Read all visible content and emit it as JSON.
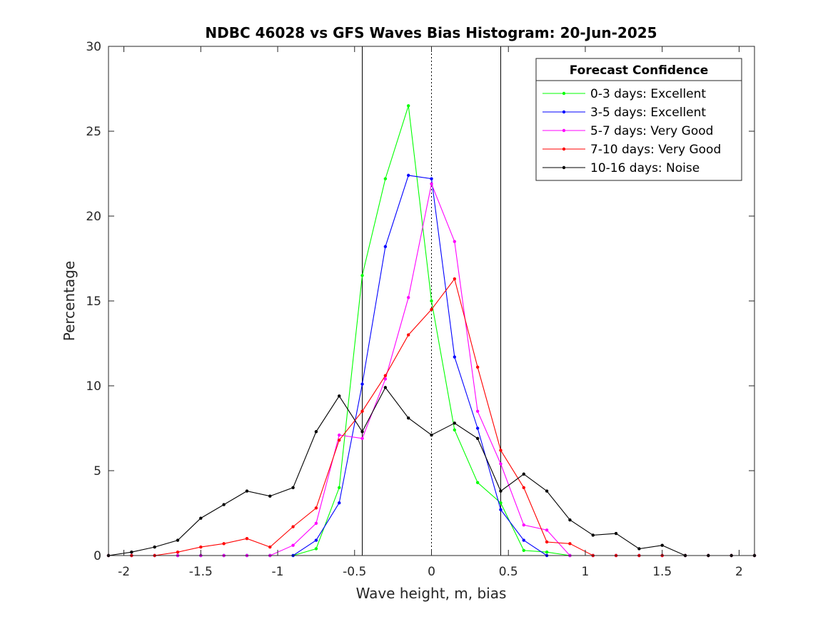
{
  "chart_data": {
    "type": "line",
    "title": "NDBC 46028 vs GFS Waves Bias Histogram: 20-Jun-2025",
    "xlabel": "Wave height, m, bias",
    "ylabel": "Percentage",
    "xlim": [
      -2.1,
      2.1
    ],
    "ylim": [
      0,
      30
    ],
    "xticks": [
      -2,
      -1.5,
      -1,
      -0.5,
      0,
      0.5,
      1,
      1.5,
      2
    ],
    "xtick_labels": [
      "-2",
      "-1.5",
      "-1",
      "-0.5",
      "0",
      "0.5",
      "1",
      "1.5",
      "2"
    ],
    "yticks": [
      0,
      5,
      10,
      15,
      20,
      25,
      30
    ],
    "ytick_labels": [
      "0",
      "5",
      "10",
      "15",
      "20",
      "25",
      "30"
    ],
    "grid": false,
    "reference_lines": [
      {
        "x": -0.45,
        "style": "solid"
      },
      {
        "x": 0,
        "style": "dotted"
      },
      {
        "x": 0.45,
        "style": "solid"
      }
    ],
    "x": [
      -2.1,
      -1.95,
      -1.8,
      -1.65,
      -1.5,
      -1.35,
      -1.2,
      -1.05,
      -0.9,
      -0.75,
      -0.6,
      -0.45,
      -0.3,
      -0.15,
      0,
      0.15,
      0.3,
      0.45,
      0.6,
      0.75,
      0.9,
      1.05,
      1.2,
      1.35,
      1.5,
      1.65,
      1.8,
      1.95,
      2.1
    ],
    "series": [
      {
        "name": "0-3 days: Excellent",
        "color": "#00ff00",
        "values": [
          0,
          0,
          0,
          0,
          0,
          0,
          0,
          0,
          0,
          0.4,
          4.0,
          16.5,
          22.2,
          26.5,
          15.0,
          7.4,
          4.3,
          3.1,
          0.3,
          0.2,
          0,
          0,
          0,
          0,
          0,
          0,
          0,
          0,
          0
        ]
      },
      {
        "name": "3-5 days: Excellent",
        "color": "#0000ff",
        "values": [
          0,
          0,
          0,
          0,
          0,
          0,
          0,
          0,
          0,
          0.9,
          3.1,
          10.1,
          18.2,
          22.4,
          22.2,
          11.7,
          7.5,
          2.7,
          0.9,
          0,
          0,
          0,
          0,
          0,
          0,
          0,
          0,
          0,
          0
        ]
      },
      {
        "name": "5-7 days: Very Good",
        "color": "#ff00ff",
        "values": [
          0,
          0,
          0,
          0,
          0,
          0,
          0,
          0,
          0.6,
          1.9,
          7.1,
          6.9,
          10.4,
          15.2,
          21.9,
          18.5,
          8.5,
          5.4,
          1.8,
          1.5,
          0,
          0,
          0,
          0,
          0,
          0,
          0,
          0,
          0
        ]
      },
      {
        "name": "7-10 days: Very Good",
        "color": "#ff0000",
        "values": [
          0,
          0,
          0,
          0.2,
          0.5,
          0.7,
          1.0,
          0.5,
          1.7,
          2.8,
          6.8,
          8.5,
          10.6,
          13.0,
          14.5,
          16.3,
          11.1,
          6.2,
          4.0,
          0.8,
          0.7,
          0,
          0,
          0,
          0,
          0,
          0,
          0,
          0
        ]
      },
      {
        "name": "10-16 days: Noise",
        "color": "#000000",
        "values": [
          0,
          0.2,
          0.5,
          0.9,
          2.2,
          3.0,
          3.8,
          3.5,
          4.0,
          7.3,
          9.4,
          7.3,
          9.9,
          8.1,
          7.1,
          7.8,
          6.9,
          3.8,
          4.8,
          3.8,
          2.1,
          1.2,
          1.3,
          0.4,
          0.6,
          0,
          0,
          0,
          0
        ]
      }
    ],
    "legend": {
      "title": "Forecast Confidence",
      "placement": "top-right"
    }
  }
}
